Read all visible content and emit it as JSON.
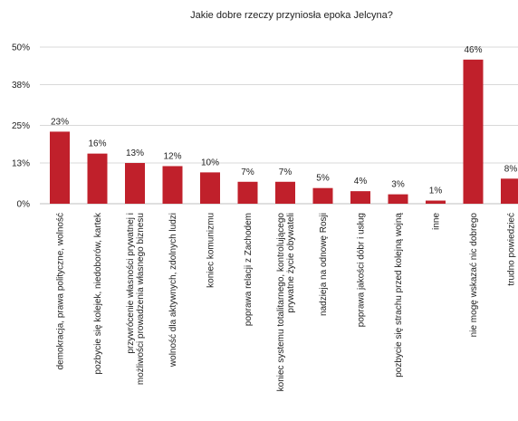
{
  "chart_data": {
    "type": "bar",
    "title": "Jakie dobre rzeczy przyniosła epoka Jelcyna?",
    "xlabel": "",
    "ylabel": "",
    "ylim": [
      0,
      50
    ],
    "yticks": [
      0,
      13,
      25,
      38,
      50
    ],
    "ytick_labels": [
      "0%",
      "13%",
      "25%",
      "38%",
      "50%"
    ],
    "grid": true,
    "bar_color": "#c0202b",
    "categories": [
      [
        "demokracja, prawa polityczne, wolność"
      ],
      [
        "pozbycie się kolejek, niedoborów, kartek"
      ],
      [
        "przywrócenie własności prywatnej i",
        "możliwości prowadzenia własnego biznesu"
      ],
      [
        "wolność dla aktywnych, zdolnych ludzi"
      ],
      [
        "koniec komunizmu"
      ],
      [
        "poprawa relacji z Zachodem"
      ],
      [
        "koniec systemu totalitarnego, kontrolującego",
        "prywatne życie obywateli"
      ],
      [
        "nadzieja na odnowę Rosji"
      ],
      [
        "poprawa jakości dóbr i usług"
      ],
      [
        "pozbycie się strachu przed kolejną wojną"
      ],
      [
        "inne"
      ],
      [
        "nie mogę wskazać nic dobrego"
      ],
      [
        "trudno powiedzieć"
      ]
    ],
    "values": [
      23,
      16,
      13,
      12,
      10,
      7,
      7,
      5,
      4,
      3,
      1,
      46,
      8
    ],
    "value_labels": [
      "23%",
      "16%",
      "13%",
      "12%",
      "10%",
      "7%",
      "7%",
      "5%",
      "4%",
      "3%",
      "1%",
      "46%",
      "8%"
    ]
  }
}
